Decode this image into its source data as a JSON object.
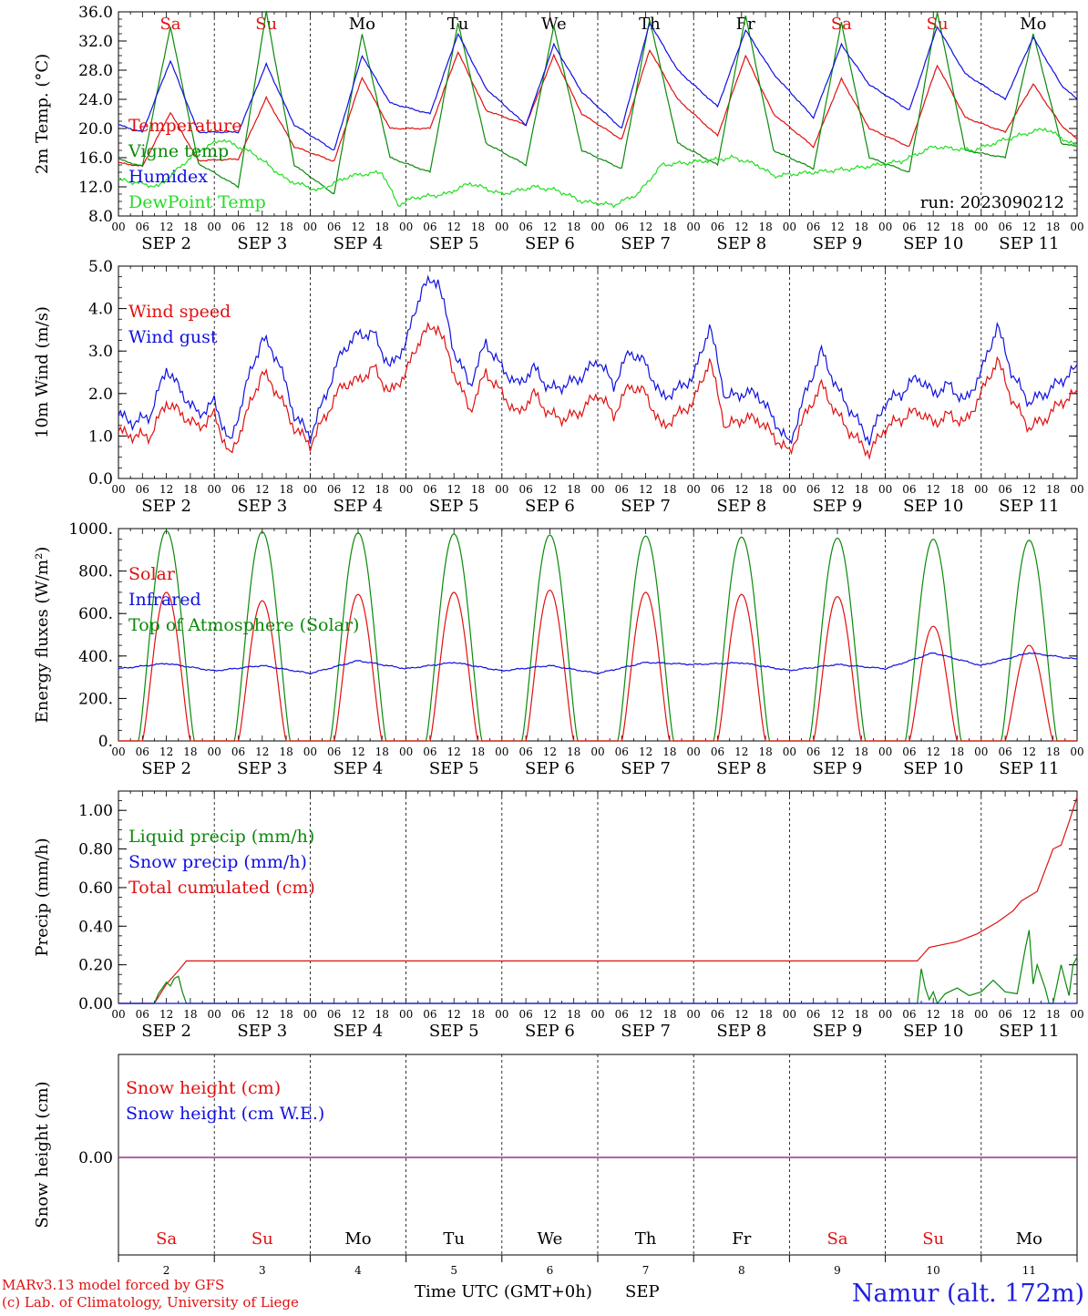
{
  "common": {
    "hour_labels": [
      "00",
      "06",
      "12",
      "18"
    ],
    "end_label": "00",
    "month": "SEP",
    "day_numbers": [
      "2",
      "3",
      "4",
      "5",
      "6",
      "7",
      "8",
      "9",
      "10",
      "11"
    ],
    "weekdays": [
      {
        "label": "Sa",
        "color": "#e01010"
      },
      {
        "label": "Su",
        "color": "#e01010"
      },
      {
        "label": "Mo",
        "color": "#000000"
      },
      {
        "label": "Tu",
        "color": "#000000"
      },
      {
        "label": "We",
        "color": "#000000"
      },
      {
        "label": "Th",
        "color": "#000000"
      },
      {
        "label": "Fr",
        "color": "#000000"
      },
      {
        "label": "Sa",
        "color": "#e01010"
      },
      {
        "label": "Su",
        "color": "#e01010"
      },
      {
        "label": "Mo",
        "color": "#000000"
      }
    ]
  },
  "footer": {
    "model": "MARv3.13 model forced by GFS",
    "copyright": "(c) Lab. of Climatology, University of Liege",
    "xlabel": "Time UTC (GMT+0h)",
    "xmonth": "SEP",
    "station": "Namur (alt. 172m)"
  },
  "chart_data": [
    {
      "type": "line",
      "ylabel": "2m Temp. (°C)",
      "ylim": [
        8,
        36
      ],
      "yticks": [
        "8.0",
        "12.0",
        "16.0",
        "20.0",
        "24.0",
        "28.0",
        "32.0",
        "36.0"
      ],
      "xlim_hours": [
        0,
        240
      ],
      "annotation": "run: 2023090212",
      "legend": [
        {
          "name": "Temperature",
          "color": "#e01010"
        },
        {
          "name": "Vigne temp",
          "color": "#0a8a0a"
        },
        {
          "name": "Humidex",
          "color": "#1010e0"
        },
        {
          "name": "DewPoint Temp",
          "color": "#22dd22"
        }
      ],
      "series": [
        {
          "name": "Temperature",
          "color": "#e01010",
          "x_hours": [
            0,
            6,
            13,
            20,
            30,
            37,
            44,
            54,
            61,
            68,
            78,
            85,
            92,
            102,
            109,
            116,
            126,
            133,
            140,
            150,
            157,
            164,
            174,
            181,
            188,
            198,
            205,
            212,
            222,
            229,
            236,
            240
          ],
          "values": [
            15.3,
            14.8,
            22.2,
            15.6,
            15.8,
            24.2,
            17.5,
            15.5,
            27.0,
            20.0,
            20.0,
            30.5,
            22.5,
            20.5,
            30.0,
            22.0,
            18.5,
            30.8,
            24.0,
            19.0,
            30.0,
            22.0,
            17.5,
            26.8,
            20.0,
            17.5,
            28.7,
            21.5,
            19.5,
            26.1,
            20.5,
            18.5
          ]
        },
        {
          "name": "Vigne temp",
          "color": "#0a8a0a",
          "x_hours": [
            0,
            6,
            13,
            20,
            30,
            37,
            44,
            54,
            61,
            68,
            78,
            85,
            92,
            102,
            109,
            116,
            126,
            133,
            140,
            150,
            157,
            164,
            174,
            181,
            188,
            198,
            205,
            212,
            222,
            229,
            236,
            240
          ],
          "values": [
            15.8,
            14.8,
            34.0,
            15.2,
            12.0,
            36.0,
            15.0,
            11.0,
            33.0,
            16.0,
            14.0,
            34.5,
            18.0,
            15.0,
            34.0,
            17.0,
            14.5,
            35.0,
            18.0,
            15.0,
            35.5,
            17.0,
            14.5,
            34.5,
            16.0,
            14.0,
            36.0,
            17.0,
            16.0,
            33.0,
            18.0,
            17.5
          ]
        },
        {
          "name": "Humidex",
          "color": "#1010e0",
          "x_hours": [
            0,
            6,
            13,
            20,
            30,
            37,
            44,
            54,
            61,
            68,
            78,
            85,
            92,
            102,
            109,
            116,
            126,
            133,
            140,
            150,
            157,
            164,
            174,
            181,
            188,
            198,
            205,
            212,
            222,
            229,
            236,
            240
          ],
          "values": [
            20.5,
            19.5,
            29.3,
            19.5,
            19.5,
            28.8,
            20.5,
            17.0,
            30.0,
            23.5,
            22.0,
            33.0,
            25.5,
            20.5,
            31.5,
            25.0,
            20.0,
            34.5,
            28.0,
            23.0,
            33.5,
            27.5,
            21.5,
            31.5,
            26.0,
            22.5,
            34.0,
            27.5,
            24.0,
            32.5,
            26.0,
            24.0
          ]
        },
        {
          "name": "DewPoint Temp",
          "color": "#22dd22",
          "x_hours": [
            0,
            10,
            20,
            26,
            34,
            42,
            50,
            58,
            66,
            70,
            74,
            82,
            88,
            96,
            104,
            110,
            116,
            124,
            130,
            136,
            146,
            154,
            160,
            164,
            174,
            184,
            196,
            204,
            214,
            222,
            232,
            240
          ],
          "values": [
            13.0,
            12.0,
            17.0,
            18.5,
            16.5,
            13.0,
            11.5,
            13.5,
            14.0,
            9.5,
            10.5,
            11.0,
            12.5,
            11.0,
            12.0,
            11.5,
            10.0,
            9.5,
            11.0,
            15.0,
            15.5,
            16.0,
            15.0,
            13.5,
            14.0,
            14.5,
            15.5,
            17.5,
            17.0,
            18.5,
            20.0,
            17.5
          ]
        }
      ]
    },
    {
      "type": "line",
      "ylabel": "10m Wind (m/s)",
      "ylim": [
        0,
        5
      ],
      "yticks": [
        "0.0",
        "1.0",
        "2.0",
        "3.0",
        "4.0",
        "5.0"
      ],
      "xlim_hours": [
        0,
        240
      ],
      "legend": [
        {
          "name": "Wind speed",
          "color": "#e01010"
        },
        {
          "name": "Wind gust",
          "color": "#1010e0"
        }
      ],
      "series": [
        {
          "name": "Wind speed",
          "color": "#e01010",
          "x_hours": [
            0,
            4,
            8,
            12,
            16,
            20,
            24,
            28,
            32,
            36,
            40,
            44,
            48,
            52,
            56,
            60,
            64,
            68,
            72,
            76,
            80,
            84,
            88,
            92,
            96,
            100,
            104,
            108,
            112,
            116,
            120,
            124,
            128,
            132,
            136,
            140,
            144,
            148,
            152,
            156,
            160,
            164,
            168,
            172,
            176,
            180,
            184,
            188,
            192,
            196,
            200,
            204,
            208,
            212,
            216,
            220,
            224,
            228,
            232,
            236,
            240
          ],
          "values": [
            1.1,
            1.0,
            1.0,
            1.8,
            1.5,
            1.2,
            1.5,
            0.5,
            1.5,
            2.5,
            2.0,
            1.2,
            0.8,
            1.5,
            2.2,
            2.3,
            2.6,
            2.0,
            2.5,
            3.4,
            3.6,
            2.5,
            1.6,
            2.5,
            2.0,
            1.5,
            2.0,
            1.5,
            1.4,
            1.6,
            2.0,
            1.5,
            2.2,
            2.0,
            1.2,
            1.5,
            1.8,
            2.8,
            1.2,
            1.4,
            1.4,
            1.0,
            0.6,
            1.5,
            2.2,
            1.5,
            1.0,
            0.6,
            1.2,
            1.4,
            1.6,
            1.3,
            1.5,
            1.3,
            2.0,
            2.8,
            1.8,
            1.2,
            1.4,
            1.8,
            2.0
          ]
        },
        {
          "name": "Wind gust",
          "color": "#1010e0",
          "x_hours": [
            0,
            4,
            8,
            12,
            16,
            20,
            24,
            28,
            32,
            36,
            40,
            44,
            48,
            52,
            56,
            60,
            64,
            68,
            72,
            76,
            80,
            84,
            88,
            92,
            96,
            100,
            104,
            108,
            112,
            116,
            120,
            124,
            128,
            132,
            136,
            140,
            144,
            148,
            152,
            156,
            160,
            164,
            168,
            172,
            176,
            180,
            184,
            188,
            192,
            196,
            200,
            204,
            208,
            212,
            216,
            220,
            224,
            228,
            232,
            236,
            240
          ],
          "values": [
            1.5,
            1.3,
            1.5,
            2.6,
            2.0,
            1.5,
            1.8,
            0.8,
            2.2,
            3.3,
            2.8,
            1.5,
            1.0,
            2.0,
            3.0,
            3.4,
            3.4,
            2.6,
            3.2,
            4.5,
            4.7,
            3.0,
            2.2,
            3.2,
            2.6,
            2.2,
            2.6,
            2.1,
            2.2,
            2.4,
            2.8,
            2.2,
            3.0,
            2.7,
            1.9,
            2.1,
            2.4,
            3.6,
            1.9,
            2.0,
            2.0,
            1.4,
            0.8,
            2.0,
            3.0,
            2.1,
            1.5,
            0.9,
            1.8,
            2.0,
            2.4,
            2.0,
            2.2,
            1.8,
            2.5,
            3.6,
            2.4,
            1.8,
            2.0,
            2.3,
            2.6
          ]
        }
      ]
    },
    {
      "type": "line",
      "ylabel": "Energy fluxes (W/m²)",
      "ylim": [
        0,
        1000
      ],
      "yticks": [
        "0.",
        "200.",
        "400.",
        "600.",
        "800.",
        "1000."
      ],
      "xlim_hours": [
        0,
        240
      ],
      "legend": [
        {
          "name": "Solar",
          "color": "#e01010"
        },
        {
          "name": "Infrared",
          "color": "#1010e0"
        },
        {
          "name": "Top of Atmosphere (Solar)",
          "color": "#0a8a0a"
        }
      ],
      "series": [
        {
          "name": "Top of Atmosphere (Solar)",
          "color": "#0a8a0a",
          "daily_peaks": [
            990,
            985,
            980,
            975,
            970,
            965,
            960,
            955,
            950,
            945
          ],
          "day_start_hour": 5,
          "day_end_hour": 19
        },
        {
          "name": "Solar",
          "color": "#e01010",
          "daily_peaks": [
            700,
            660,
            690,
            700,
            710,
            700,
            690,
            680,
            540,
            450
          ],
          "day_start_hour": 6,
          "day_end_hour": 18
        },
        {
          "name": "Infrared",
          "color": "#1010e0",
          "x_hours": [
            0,
            12,
            24,
            36,
            48,
            60,
            72,
            84,
            96,
            108,
            120,
            132,
            144,
            156,
            168,
            180,
            192,
            204,
            216,
            228,
            240
          ],
          "values": [
            340,
            365,
            330,
            355,
            318,
            378,
            340,
            370,
            330,
            355,
            318,
            370,
            360,
            368,
            332,
            360,
            340,
            415,
            355,
            415,
            385
          ]
        }
      ]
    },
    {
      "type": "line",
      "ylabel": "Precip (mm/h)",
      "ylim": [
        0,
        1.1
      ],
      "yticks": [
        "0.00",
        "0.20",
        "0.40",
        "0.60",
        "0.80",
        "1.00"
      ],
      "xlim_hours": [
        0,
        240
      ],
      "legend": [
        {
          "name": "Liquid precip (mm/h)",
          "color": "#0a8a0a"
        },
        {
          "name": "Snow precip (mm/h)",
          "color": "#1010e0"
        },
        {
          "name": "Total cumulated (cm)",
          "color": "#e01010"
        }
      ],
      "series": [
        {
          "name": "Total cumulated (cm)",
          "color": "#e01010",
          "x_hours": [
            0,
            9,
            12,
            15,
            17,
            200,
            203,
            210,
            215,
            220,
            224,
            226,
            230,
            234,
            236,
            238,
            240
          ],
          "values": [
            0,
            0,
            0.1,
            0.17,
            0.22,
            0.22,
            0.29,
            0.32,
            0.36,
            0.42,
            0.48,
            0.53,
            0.58,
            0.8,
            0.82,
            0.94,
            1.07
          ]
        },
        {
          "name": "Liquid precip (mm/h)",
          "color": "#0a8a0a",
          "x_hours": [
            0,
            9,
            10,
            11,
            12,
            13,
            14,
            15,
            16,
            17,
            200,
            201,
            202,
            203,
            204,
            205,
            207,
            210,
            213,
            216,
            219,
            222,
            225,
            227,
            228,
            229,
            230,
            232,
            233,
            234,
            235,
            236,
            237,
            238,
            239,
            240
          ],
          "values": [
            0,
            0,
            0.05,
            0.08,
            0.11,
            0.09,
            0.13,
            0.14,
            0.06,
            0,
            0,
            0.18,
            0.08,
            0.02,
            0.06,
            0,
            0.05,
            0.08,
            0.04,
            0.06,
            0.12,
            0.06,
            0.05,
            0.28,
            0.38,
            0.1,
            0.2,
            0.08,
            0,
            0,
            0.1,
            0.2,
            0.12,
            0.04,
            0.2,
            0.24
          ]
        },
        {
          "name": "Snow precip (mm/h)",
          "color": "#1010e0",
          "x_hours": [
            0,
            240
          ],
          "values": [
            0,
            0
          ]
        }
      ]
    },
    {
      "type": "line",
      "ylabel": "Snow height (cm)",
      "ytick": "0.00",
      "xlim_hours": [
        0,
        240
      ],
      "legend": [
        {
          "name": "Snow height (cm)",
          "color": "#e01010"
        },
        {
          "name": "Snow height (cm W.E.)",
          "color": "#1010e0"
        }
      ],
      "series": [
        {
          "name": "Snow height (cm)",
          "color": "#9a3090",
          "x_hours": [
            0,
            240
          ],
          "values": [
            0,
            0
          ]
        }
      ]
    }
  ]
}
